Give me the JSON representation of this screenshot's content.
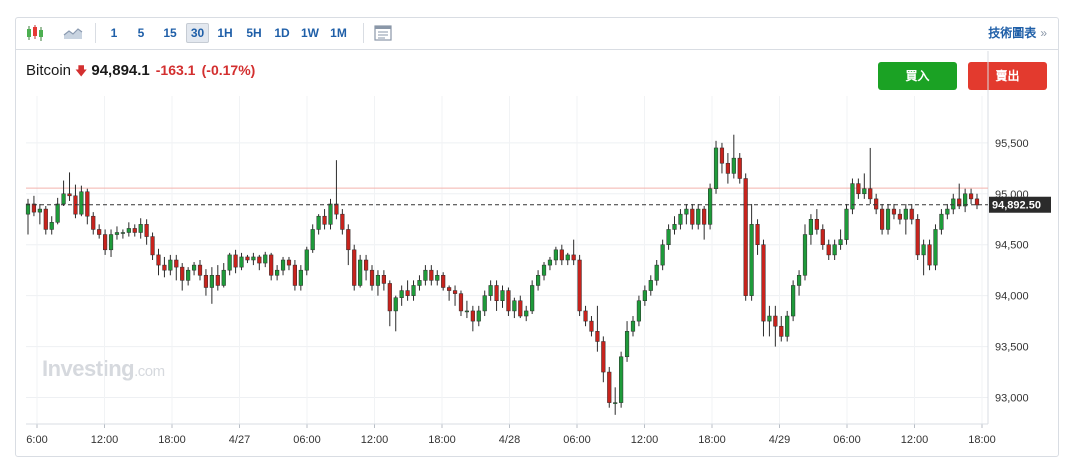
{
  "toolbar": {
    "icons": [
      "candlestick-icon",
      "area-chart-icon",
      "indicators-icon"
    ],
    "timeframes": [
      "1",
      "5",
      "15",
      "30",
      "1H",
      "5H",
      "1D",
      "1W",
      "1M"
    ],
    "active_timeframe": "30",
    "tech_label": "技術圖表",
    "tech_chevron": "»"
  },
  "quote": {
    "symbol": "Bitcoin",
    "direction_icon": "down-arrow-icon",
    "price": "94,894.1",
    "change": "-163.1",
    "change_pct": "(-0.17%)"
  },
  "actions": {
    "buy": "買入",
    "sell": "賣出"
  },
  "watermark": {
    "brand": "Investing",
    "suffix": ".com"
  },
  "colors": {
    "up": "#1e9b3a",
    "down": "#c8231d",
    "buy": "#1ba224",
    "sell": "#e33a2e",
    "accent": "#1f5fa8"
  },
  "chart_data": {
    "type": "candlestick",
    "interval": "30 minutes",
    "y_ticks": [
      "95,500",
      "95,000",
      "94,500",
      "94,000",
      "93,500",
      "93,000"
    ],
    "y_tick_values": [
      95500,
      95000,
      94500,
      94000,
      93500,
      93000
    ],
    "ylim": [
      92740,
      95960
    ],
    "x_tick_labels": [
      "6:00",
      "12:00",
      "18:00",
      "4/27",
      "06:00",
      "12:00",
      "18:00",
      "4/28",
      "06:00",
      "12:00",
      "18:00",
      "4/29",
      "06:00",
      "12:00",
      "18:00"
    ],
    "last_price_label": "94,892.50",
    "last_price": 94892.5,
    "reference_level": 95055,
    "candles": [
      [
        94800,
        94900,
        94600,
        94950
      ],
      [
        94900,
        94820,
        94780,
        94980
      ],
      [
        94820,
        94850,
        94700,
        94900
      ],
      [
        94850,
        94650,
        94600,
        94880
      ],
      [
        94650,
        94720,
        94600,
        94780
      ],
      [
        94720,
        94900,
        94700,
        94960
      ],
      [
        94900,
        95000,
        94880,
        95130
      ],
      [
        95000,
        94980,
        94930,
        95210
      ],
      [
        94980,
        94800,
        94760,
        95090
      ],
      [
        94800,
        95020,
        94780,
        95080
      ],
      [
        95020,
        94780,
        94700,
        95050
      ],
      [
        94780,
        94650,
        94600,
        94820
      ],
      [
        94650,
        94600,
        94560,
        94700
      ],
      [
        94600,
        94450,
        94400,
        94650
      ],
      [
        94450,
        94600,
        94380,
        94650
      ],
      [
        94600,
        94620,
        94550,
        94680
      ],
      [
        94620,
        94620,
        94560,
        94650
      ],
      [
        94620,
        94660,
        94580,
        94720
      ],
      [
        94660,
        94620,
        94580,
        94700
      ],
      [
        94620,
        94700,
        94560,
        94760
      ],
      [
        94700,
        94580,
        94500,
        94750
      ],
      [
        94580,
        94400,
        94350,
        94620
      ],
      [
        94400,
        94300,
        94200,
        94460
      ],
      [
        94300,
        94250,
        94180,
        94380
      ],
      [
        94250,
        94350,
        94200,
        94400
      ],
      [
        94350,
        94280,
        94150,
        94400
      ],
      [
        94280,
        94150,
        94050,
        94320
      ],
      [
        94150,
        94250,
        94100,
        94280
      ],
      [
        94250,
        94300,
        94200,
        94330
      ],
      [
        94300,
        94200,
        94150,
        94350
      ],
      [
        94200,
        94080,
        94000,
        94260
      ],
      [
        94080,
        94200,
        93920,
        94280
      ],
      [
        94200,
        94100,
        94050,
        94300
      ],
      [
        94100,
        94250,
        94080,
        94320
      ],
      [
        94250,
        94400,
        94200,
        94420
      ],
      [
        94400,
        94280,
        94220,
        94450
      ],
      [
        94280,
        94380,
        94250,
        94420
      ],
      [
        94380,
        94350,
        94320,
        94400
      ],
      [
        94350,
        94380,
        94300,
        94420
      ],
      [
        94380,
        94320,
        94250,
        94400
      ],
      [
        94320,
        94400,
        94280,
        94430
      ],
      [
        94400,
        94200,
        94150,
        94420
      ],
      [
        94200,
        94250,
        94150,
        94300
      ],
      [
        94250,
        94350,
        94200,
        94380
      ],
      [
        94350,
        94300,
        94250,
        94380
      ],
      [
        94300,
        94100,
        94050,
        94350
      ],
      [
        94100,
        94250,
        94050,
        94300
      ],
      [
        94250,
        94450,
        94200,
        94480
      ],
      [
        94450,
        94650,
        94420,
        94700
      ],
      [
        94650,
        94780,
        94600,
        94800
      ],
      [
        94780,
        94700,
        94650,
        94850
      ],
      [
        94700,
        94900,
        94650,
        94950
      ],
      [
        94900,
        94800,
        94750,
        95330
      ],
      [
        94800,
        94650,
        94600,
        94850
      ],
      [
        94650,
        94450,
        94300,
        94700
      ],
      [
        94450,
        94100,
        94050,
        94500
      ],
      [
        94100,
        94350,
        94080,
        94400
      ],
      [
        94350,
        94250,
        94150,
        94400
      ],
      [
        94250,
        94100,
        94050,
        94300
      ],
      [
        94100,
        94200,
        94000,
        94250
      ],
      [
        94200,
        94120,
        94050,
        94250
      ],
      [
        94120,
        93850,
        93700,
        94150
      ],
      [
        93850,
        93980,
        93650,
        94000
      ],
      [
        93980,
        94050,
        93900,
        94100
      ],
      [
        94050,
        94000,
        93950,
        94150
      ],
      [
        94000,
        94100,
        93950,
        94150
      ],
      [
        94100,
        94150,
        94050,
        94200
      ],
      [
        94150,
        94250,
        94100,
        94300
      ],
      [
        94250,
        94150,
        94100,
        94300
      ],
      [
        94150,
        94200,
        94100,
        94250
      ],
      [
        94200,
        94080,
        94050,
        94230
      ],
      [
        94080,
        94050,
        93950,
        94100
      ],
      [
        94050,
        94020,
        93900,
        94100
      ],
      [
        94020,
        93850,
        93800,
        94050
      ],
      [
        93850,
        93850,
        93780,
        93950
      ],
      [
        93850,
        93750,
        93650,
        93900
      ],
      [
        93750,
        93850,
        93700,
        93900
      ],
      [
        93850,
        94000,
        93800,
        94050
      ],
      [
        94000,
        94100,
        93950,
        94150
      ],
      [
        94100,
        93950,
        93850,
        94150
      ],
      [
        93950,
        94050,
        93880,
        94100
      ],
      [
        94050,
        93850,
        93800,
        94080
      ],
      [
        93850,
        93950,
        93780,
        93980
      ],
      [
        93950,
        93800,
        93780,
        94000
      ],
      [
        93800,
        93850,
        93750,
        93900
      ],
      [
        93850,
        94100,
        93820,
        94150
      ],
      [
        94100,
        94200,
        94050,
        94250
      ],
      [
        94200,
        94300,
        94150,
        94330
      ],
      [
        94300,
        94350,
        94250,
        94380
      ],
      [
        94350,
        94450,
        94300,
        94480
      ],
      [
        94450,
        94350,
        94300,
        94500
      ],
      [
        94350,
        94400,
        94300,
        94420
      ],
      [
        94400,
        94350,
        94300,
        94550
      ],
      [
        94350,
        93850,
        93800,
        94400
      ],
      [
        93850,
        93750,
        93700,
        93900
      ],
      [
        93750,
        93650,
        93600,
        93800
      ],
      [
        93650,
        93550,
        93450,
        93900
      ],
      [
        93550,
        93250,
        93150,
        93600
      ],
      [
        93250,
        92950,
        92900,
        93300
      ],
      [
        92950,
        92950,
        92830,
        93100
      ],
      [
        92950,
        93400,
        92900,
        93450
      ],
      [
        93400,
        93650,
        93350,
        93750
      ],
      [
        93650,
        93750,
        93600,
        93800
      ],
      [
        93750,
        93950,
        93700,
        94000
      ],
      [
        93950,
        94050,
        93900,
        94100
      ],
      [
        94050,
        94150,
        94000,
        94200
      ],
      [
        94150,
        94300,
        94100,
        94350
      ],
      [
        94300,
        94500,
        94250,
        94550
      ],
      [
        94500,
        94650,
        94450,
        94700
      ],
      [
        94650,
        94700,
        94600,
        94780
      ],
      [
        94700,
        94800,
        94650,
        94850
      ],
      [
        94800,
        94850,
        94700,
        94900
      ],
      [
        94850,
        94700,
        94650,
        94900
      ],
      [
        94700,
        94850,
        94650,
        94900
      ],
      [
        94850,
        94700,
        94550,
        94880
      ],
      [
        94700,
        95050,
        94650,
        95100
      ],
      [
        95050,
        95450,
        95000,
        95520
      ],
      [
        95450,
        95300,
        95200,
        95500
      ],
      [
        95300,
        95200,
        95100,
        95400
      ],
      [
        95200,
        95350,
        95150,
        95580
      ],
      [
        95350,
        95150,
        95100,
        95400
      ],
      [
        95150,
        94000,
        93950,
        95200
      ],
      [
        94000,
        94700,
        93950,
        94900
      ],
      [
        94700,
        94500,
        94400,
        94750
      ],
      [
        94500,
        93750,
        93600,
        94550
      ],
      [
        93750,
        93800,
        93600,
        93900
      ],
      [
        93800,
        93700,
        93500,
        93900
      ],
      [
        93700,
        93600,
        93550,
        93800
      ],
      [
        93600,
        93800,
        93550,
        93850
      ],
      [
        93800,
        94100,
        93750,
        94150
      ],
      [
        94100,
        94200,
        94000,
        94250
      ],
      [
        94200,
        94600,
        94150,
        94700
      ],
      [
        94600,
        94750,
        94500,
        94800
      ],
      [
        94750,
        94650,
        94600,
        94850
      ],
      [
        94650,
        94500,
        94450,
        94700
      ],
      [
        94500,
        94400,
        94350,
        94550
      ],
      [
        94400,
        94500,
        94350,
        94550
      ],
      [
        94500,
        94550,
        94450,
        94650
      ],
      [
        94550,
        94850,
        94500,
        94900
      ],
      [
        94850,
        95100,
        94800,
        95150
      ],
      [
        95100,
        95000,
        94950,
        95150
      ],
      [
        95000,
        95050,
        94950,
        95200
      ],
      [
        95050,
        94950,
        94900,
        95450
      ],
      [
        94950,
        94850,
        94800,
        95000
      ],
      [
        94850,
        94650,
        94600,
        94900
      ],
      [
        94650,
        94850,
        94600,
        94900
      ],
      [
        94850,
        94800,
        94750,
        94900
      ],
      [
        94800,
        94750,
        94700,
        94850
      ],
      [
        94750,
        94850,
        94600,
        94900
      ],
      [
        94850,
        94750,
        94700,
        94900
      ],
      [
        94750,
        94400,
        94350,
        94800
      ],
      [
        94400,
        94500,
        94200,
        94550
      ],
      [
        94500,
        94300,
        94250,
        94550
      ],
      [
        94300,
        94650,
        94250,
        94700
      ],
      [
        94650,
        94800,
        94600,
        94850
      ],
      [
        94800,
        94850,
        94750,
        94900
      ],
      [
        94850,
        94950,
        94800,
        95000
      ],
      [
        94950,
        94880,
        94850,
        95100
      ],
      [
        94880,
        95000,
        94820,
        95050
      ],
      [
        95000,
        94950,
        94900,
        95050
      ],
      [
        94950,
        94890,
        94850,
        95000
      ]
    ]
  }
}
